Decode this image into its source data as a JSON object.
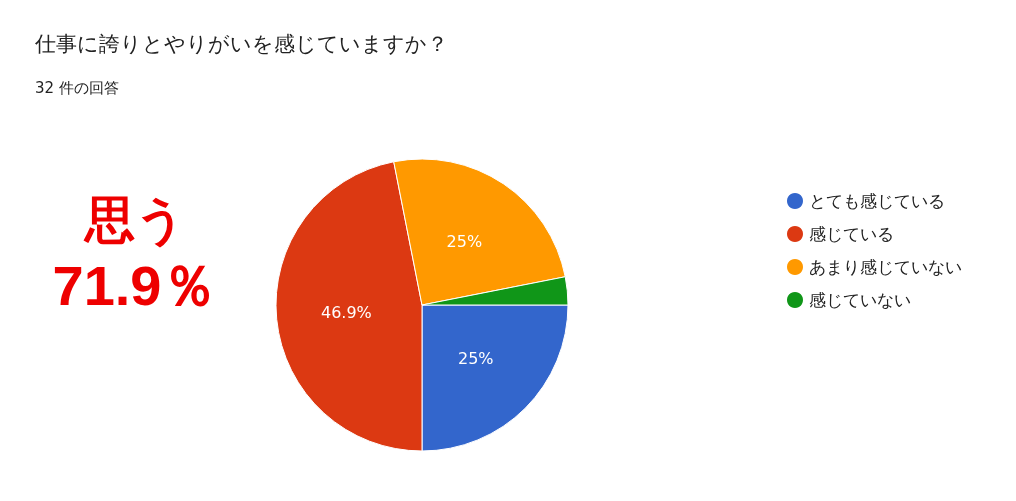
{
  "chart_data": {
    "type": "pie",
    "title": "仕事に誇りとやりがいを感じていますか？",
    "subtitle": "32 件の回答",
    "categories": [
      "とても感じている",
      "感じている",
      "あまり感じていない",
      "感じていない"
    ],
    "values": [
      25,
      46.9,
      25,
      3.1
    ],
    "colors": [
      "#3366cc",
      "#dc3912",
      "#ff9900",
      "#109618"
    ],
    "value_labels": [
      "25%",
      "46.9%",
      "25%",
      null
    ],
    "legend": "right",
    "annotations": [
      "思う",
      "71.9％"
    ]
  }
}
